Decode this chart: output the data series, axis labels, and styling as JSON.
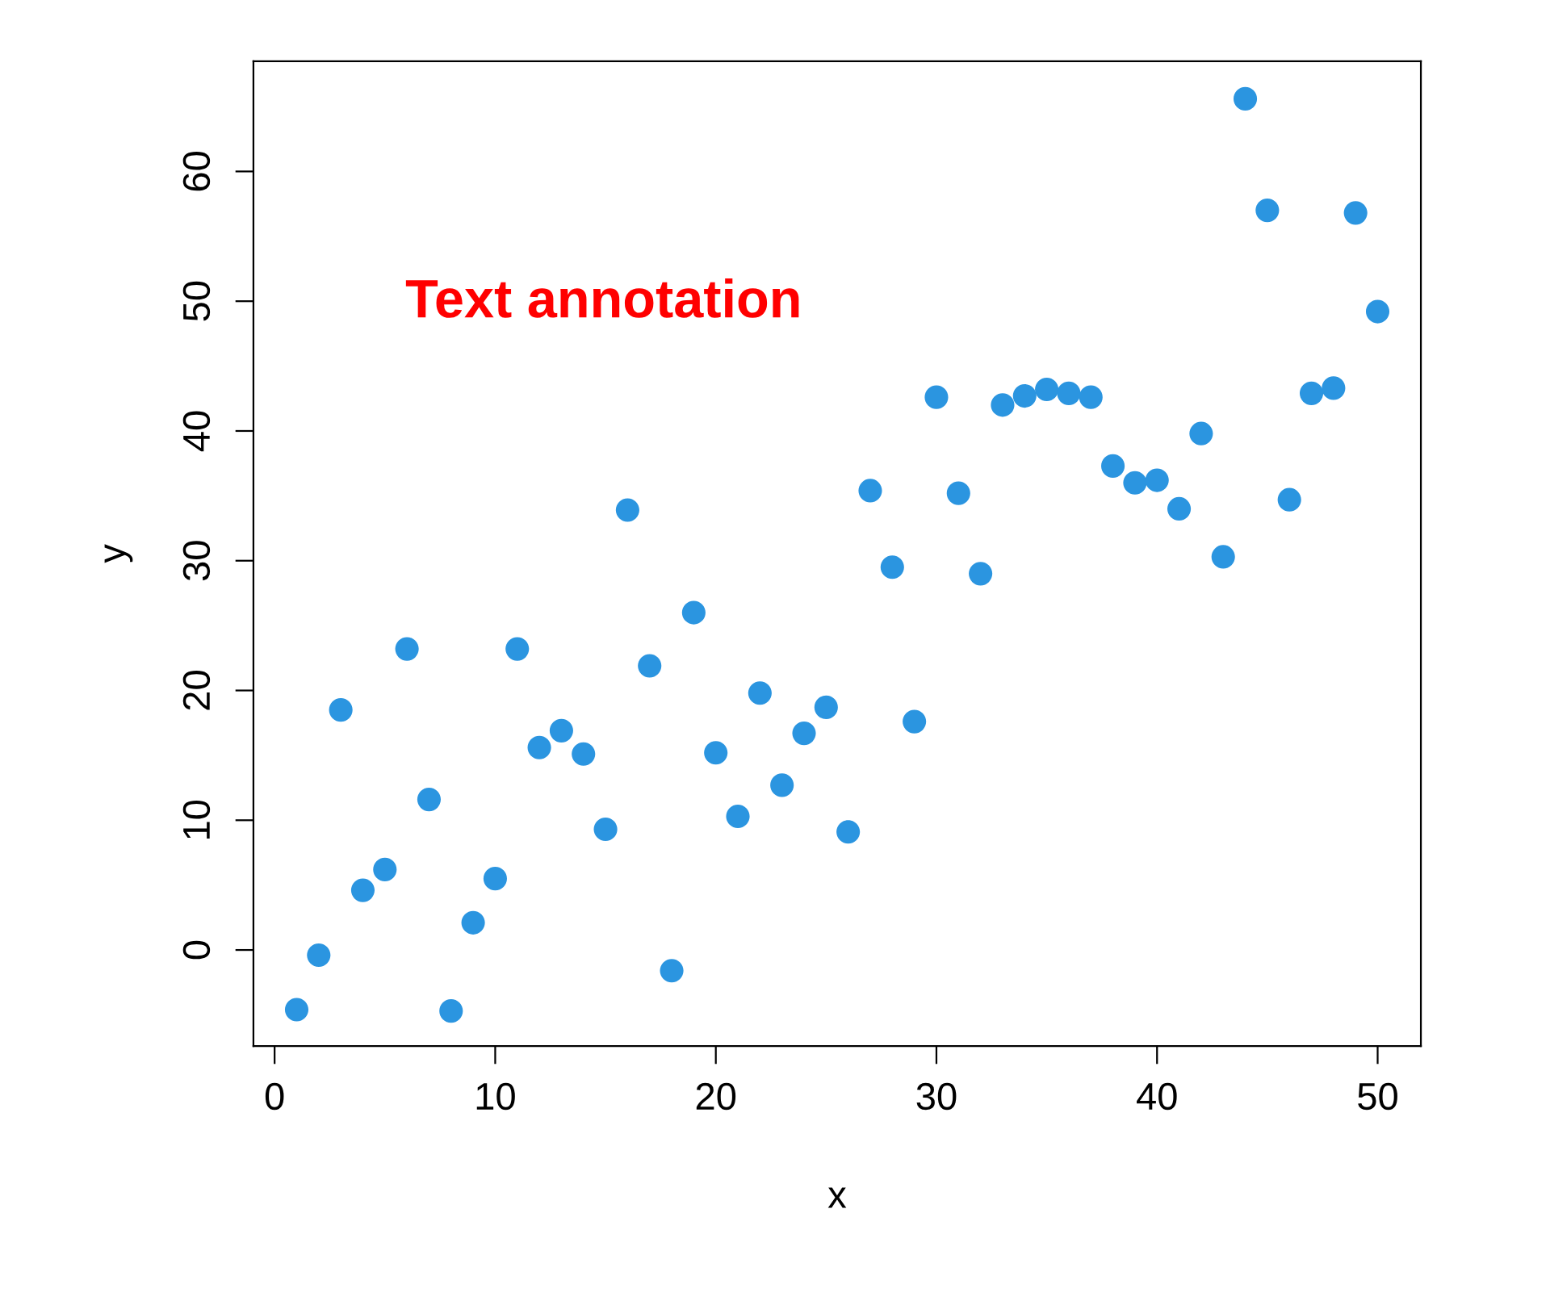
{
  "chart_data": {
    "type": "scatter",
    "xlabel": "x",
    "ylabel": "y",
    "annotations": [
      "Text annotation"
    ],
    "x": [
      1,
      2,
      3,
      4,
      5,
      6,
      7,
      8,
      9,
      10,
      11,
      12,
      13,
      14,
      15,
      16,
      17,
      18,
      19,
      20,
      21,
      22,
      23,
      24,
      25,
      26,
      27,
      28,
      29,
      30,
      31,
      32,
      33,
      34,
      35,
      36,
      37,
      38,
      39,
      40,
      41,
      42,
      43,
      44,
      45,
      46,
      47,
      48,
      49,
      50
    ],
    "series": [
      {
        "color": "#2b95e0",
        "values": [
          -4.6,
          -0.4,
          18.5,
          4.6,
          6.2,
          23.2,
          11.6,
          -4.7,
          2.1,
          5.5,
          23.2,
          15.6,
          16.9,
          15.1,
          9.3,
          33.9,
          21.9,
          -1.6,
          26.0,
          15.2,
          10.3,
          19.8,
          12.7,
          16.7,
          18.7,
          9.1,
          35.4,
          29.5,
          17.6,
          42.6,
          35.2,
          29.0,
          42.0,
          42.7,
          43.2,
          42.9,
          42.6,
          37.3,
          36.0,
          36.2,
          34.0,
          39.8,
          30.3,
          65.6,
          57.0,
          34.7,
          42.9,
          43.3,
          56.8,
          49.2
        ]
      }
    ],
    "xlim": [
      -0.96,
      51.96
    ],
    "ylim": [
      -7.4,
      68.5
    ],
    "xticks": [
      0,
      10,
      20,
      30,
      40,
      50
    ],
    "yticks": [
      0,
      10,
      20,
      30,
      40,
      50,
      60
    ],
    "marker": "circle",
    "grid": false,
    "legend": false
  }
}
